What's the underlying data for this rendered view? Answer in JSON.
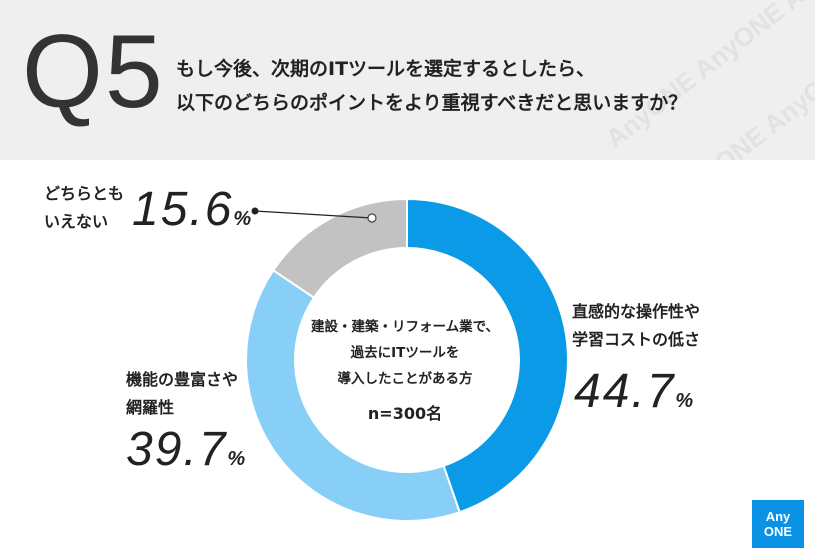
{
  "header": {
    "q_label": "Q5",
    "question_line1": "もし今後、次期のITツールを選定するとしたら、",
    "question_line2": "以下のどちらのポイントをより重視すべきだと思いますか？",
    "watermark": "AnyONE AnyONE AnyONE"
  },
  "chart_data": {
    "type": "pie",
    "donut": true,
    "title": "",
    "categories": [
      "直感的な操作性や学習コストの低さ",
      "機能の豊富さや網羅性",
      "どちらともいえない"
    ],
    "values": [
      44.7,
      39.7,
      15.6
    ],
    "unit": "%",
    "colors": [
      "#0a9ae8",
      "#87cff7",
      "#c2c2c2"
    ],
    "start": "12 o'clock",
    "direction": "clockwise"
  },
  "labels": {
    "ease": {
      "line1": "直感的な操作性や",
      "line2": "学習コストの低さ",
      "num": "44.7",
      "sym": "%"
    },
    "features": {
      "line1": "機能の豊富さや",
      "line2": "網羅性",
      "num": "39.7",
      "sym": "%"
    },
    "neither": {
      "line1": "どちらとも",
      "line2": "いえない",
      "num": "15.6",
      "sym": "%"
    }
  },
  "center": {
    "line1": "建設・建築・リフォーム業で、",
    "line2": "過去にITツールを",
    "line3": "導入したことがある方",
    "n": "n=300名"
  },
  "logo": {
    "line1": "Any",
    "line2": "ONE",
    "color": "#0a93e4"
  }
}
